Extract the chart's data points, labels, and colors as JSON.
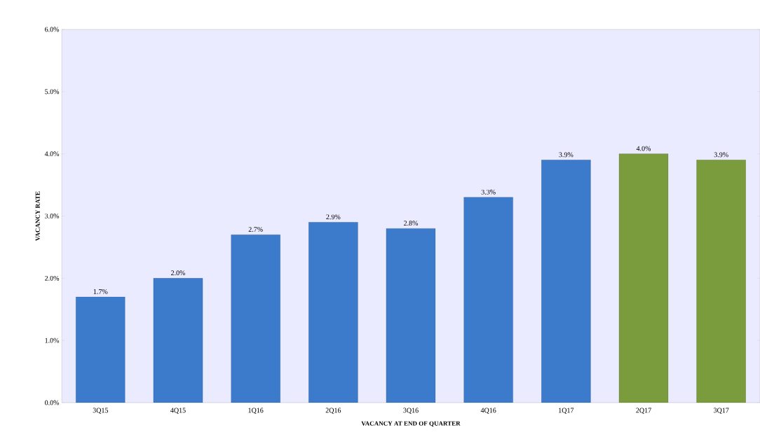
{
  "chart_data": {
    "type": "bar",
    "xlabel": "VACANCY  AT END OF QUARTER",
    "ylabel": "VACANCY RATE",
    "categories": [
      "3Q15",
      "4Q15",
      "1Q16",
      "2Q16",
      "3Q16",
      "4Q16",
      "1Q17",
      "2Q17",
      "3Q17"
    ],
    "values": [
      1.7,
      2.0,
      2.7,
      2.9,
      2.8,
      3.3,
      3.9,
      4.0,
      3.9
    ],
    "value_labels": [
      "1.7%",
      "2.0%",
      "2.7%",
      "2.9%",
      "2.8%",
      "3.3%",
      "3.9%",
      "4.0%",
      "3.9%"
    ],
    "colors": [
      "#3c7bcc",
      "#3c7bcc",
      "#3c7bcc",
      "#3c7bcc",
      "#3c7bcc",
      "#3c7bcc",
      "#3c7bcc",
      "#7b9c3c",
      "#7b9c3c"
    ],
    "ylim": [
      0,
      6
    ],
    "yticks": [
      {
        "value": 0,
        "label": "0.0%"
      },
      {
        "value": 1,
        "label": "1.0%"
      },
      {
        "value": 2,
        "label": "2.0%"
      },
      {
        "value": 3,
        "label": "3.0%"
      },
      {
        "value": 4,
        "label": "4.0%"
      },
      {
        "value": 5,
        "label": "5.0%"
      },
      {
        "value": 6,
        "label": "6.0%"
      }
    ],
    "grid": false
  }
}
